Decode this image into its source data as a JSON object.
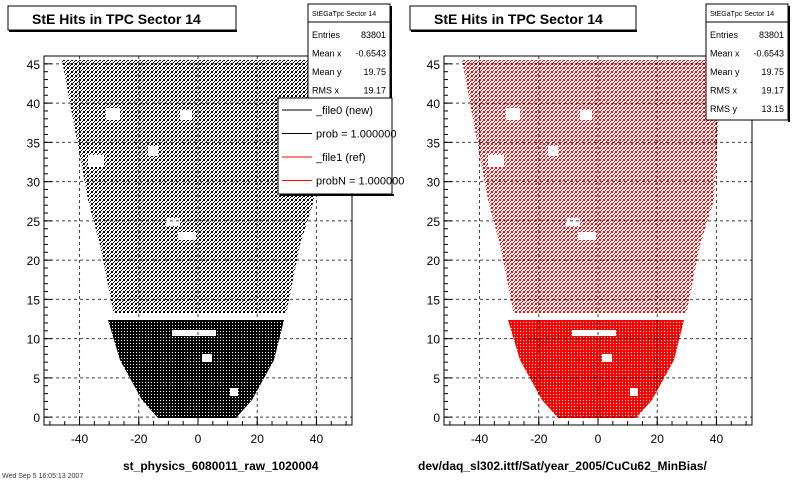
{
  "chart_data": [
    {
      "type": "scatter",
      "title": "StE Hits in TPC Sector 14",
      "xlabel": "st_physics_6080011_raw_1020004",
      "ylabel": "",
      "xlim": [
        -52,
        52
      ],
      "ylim": [
        -1,
        46
      ],
      "x_ticks": [
        "-40",
        "-20",
        "0",
        "20",
        "40"
      ],
      "y_ticks": [
        "0",
        "5",
        "10",
        "15",
        "20",
        "25",
        "30",
        "35",
        "40",
        "45"
      ],
      "grid": true,
      "marker_color": "#000000",
      "stats": {
        "title": "StEGaTpc Sector 14",
        "rows": [
          {
            "label": "Entries",
            "value": "83801"
          },
          {
            "label": "Mean x",
            "value": "-0.6543"
          },
          {
            "label": "Mean y",
            "value": "19.75"
          },
          {
            "label": "RMS x",
            "value": "19.17"
          }
        ]
      },
      "legend": {
        "placement": "top-right",
        "entries": [
          {
            "label": "_file0 (new)",
            "color": "#000000"
          },
          {
            "label": "prob = 1.000000",
            "color": "#000000"
          },
          {
            "label": "_file1 (ref)",
            "color": "#ff0000"
          },
          {
            "label": "probN = 1.000000",
            "color": "#ff0000"
          }
        ]
      },
      "footer_fragment": "Wed Sep  5 16:05:13 2007"
    },
    {
      "type": "scatter",
      "title": "StE Hits in TPC Sector 14",
      "xlabel": "dev/daq_sl302.ittf/Sat/year_2005/CuCu62_MinBias/",
      "ylabel": "",
      "xlim": [
        -52,
        52
      ],
      "ylim": [
        -1,
        46
      ],
      "x_ticks": [
        "-40",
        "-20",
        "0",
        "20",
        "40"
      ],
      "y_ticks": [
        "0",
        "5",
        "10",
        "15",
        "20",
        "25",
        "30",
        "35",
        "40",
        "45"
      ],
      "grid": true,
      "marker_color": "#ff0000",
      "stats": {
        "title": "StEGaTpc Sector 14",
        "rows": [
          {
            "label": "Entries",
            "value": "83801"
          },
          {
            "label": "Mean x",
            "value": "-0.6543"
          },
          {
            "label": "Mean y",
            "value": "19.75"
          },
          {
            "label": "RMS x",
            "value": "19.17"
          },
          {
            "label": "RMS y",
            "value": "13.15"
          }
        ]
      }
    }
  ]
}
